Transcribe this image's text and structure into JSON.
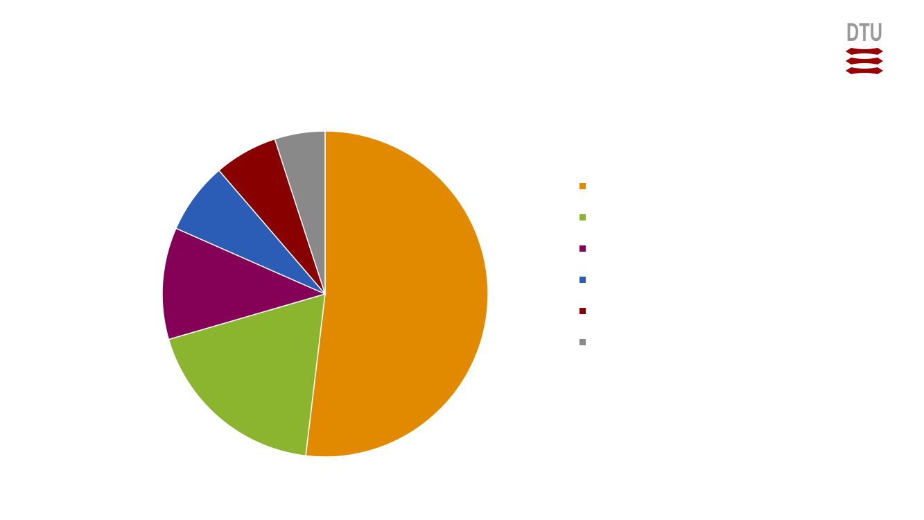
{
  "logo": {
    "text": "DTU",
    "text_color": "#999999",
    "mark_color": "#990000"
  },
  "chart_data": {
    "type": "pie",
    "title": "",
    "start_angle": "12 o'clock",
    "direction": "clockwise",
    "legend": "right",
    "slices": [
      {
        "value": 51.9,
        "color": "#E18A00"
      },
      {
        "value": 18.6,
        "color": "#8BB52F"
      },
      {
        "value": 11.1,
        "color": "#850057"
      },
      {
        "value": 7.1,
        "color": "#2C5DB6"
      },
      {
        "value": 6.3,
        "color": "#880000"
      },
      {
        "value": 5.0,
        "color": "#898989"
      }
    ]
  }
}
